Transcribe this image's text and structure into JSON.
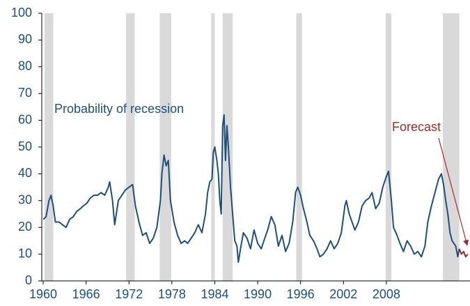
{
  "chart_data": {
    "type": "line",
    "xlim": [
      1959.8,
      2019.7
    ],
    "xticks": [
      1960,
      1966,
      1972,
      1978,
      1984,
      1990,
      1996,
      2002,
      2008
    ],
    "ylim": [
      0,
      100
    ],
    "yticks": [
      0,
      10,
      20,
      30,
      40,
      50,
      60,
      70,
      80,
      90,
      100
    ],
    "recession_color": "#d9d9d9",
    "recessions": [
      [
        1960.2,
        1961.4
      ],
      [
        1971.6,
        1972.8
      ],
      [
        1976.3,
        1977.9
      ],
      [
        1983.5,
        1984.0
      ],
      [
        1985.1,
        1986.5
      ],
      [
        1995.4,
        1996.2
      ],
      [
        2007.9,
        2008.7
      ],
      [
        2015.9,
        2018.2
      ]
    ],
    "series": [
      {
        "name": "Probability of recession",
        "color": "#1b4f7c",
        "x": [
          1960.0,
          1960.4,
          1960.8,
          1961.1,
          1961.4,
          1961.7,
          1962.2,
          1962.7,
          1963.2,
          1963.7,
          1964.2,
          1964.7,
          1965.2,
          1965.6,
          1966.1,
          1966.6,
          1967.1,
          1967.6,
          1968.1,
          1968.6,
          1969.1,
          1969.3,
          1969.7,
          1970.0,
          1970.5,
          1971.0,
          1971.5,
          1972.0,
          1972.5,
          1972.9,
          1973.4,
          1973.9,
          1974.4,
          1974.9,
          1975.4,
          1975.9,
          1976.4,
          1976.6,
          1976.9,
          1977.2,
          1977.5,
          1977.8,
          1978.3,
          1978.8,
          1979.3,
          1979.8,
          1980.2,
          1980.7,
          1981.2,
          1981.7,
          1982.2,
          1982.7,
          1983.0,
          1983.3,
          1983.6,
          1983.8,
          1984.0,
          1984.3,
          1984.5,
          1984.7,
          1984.9,
          1985.1,
          1985.3,
          1985.5,
          1985.7,
          1985.9,
          1986.2,
          1986.5,
          1986.8,
          1987.1,
          1987.3,
          1987.6,
          1988.0,
          1988.5,
          1989.0,
          1989.5,
          1990.0,
          1990.5,
          1991.0,
          1991.4,
          1991.9,
          1992.4,
          1992.9,
          1993.4,
          1993.9,
          1994.4,
          1994.9,
          1995.3,
          1995.6,
          1996.0,
          1996.4,
          1996.8,
          1997.3,
          1997.8,
          1998.3,
          1998.7,
          1999.2,
          1999.7,
          2000.2,
          2000.7,
          2001.2,
          2001.7,
          2002.2,
          2002.4,
          2002.8,
          2003.2,
          2003.6,
          2004.1,
          2004.6,
          2005.1,
          2005.6,
          2006.0,
          2006.5,
          2007.0,
          2007.5,
          2008.0,
          2008.3,
          2008.7,
          2009.0,
          2009.5,
          2009.9,
          2010.4,
          2010.9,
          2011.4,
          2011.9,
          2012.4,
          2012.9,
          2013.4,
          2013.8,
          2014.3,
          2014.8,
          2015.3,
          2015.7,
          2016.0,
          2016.3,
          2016.6,
          2016.9,
          2017.2,
          2017.7,
          2018.0,
          2018.2
        ],
        "values": [
          23,
          24,
          30,
          32,
          28,
          22,
          22,
          21,
          20,
          23,
          24,
          26,
          27,
          28,
          29,
          31,
          32,
          32,
          33,
          32,
          35,
          37,
          30,
          21,
          30,
          32,
          34,
          35,
          36,
          28,
          22,
          17,
          18,
          14,
          16,
          20,
          30,
          40,
          47,
          43,
          45,
          30,
          22,
          17,
          14,
          15,
          14,
          16,
          18,
          21,
          18,
          25,
          33,
          37,
          38,
          48,
          50,
          45,
          40,
          30,
          25,
          58,
          62,
          45,
          58,
          50,
          35,
          25,
          15,
          13,
          7,
          12,
          18,
          16,
          12,
          19,
          14,
          12,
          16,
          19,
          24,
          21,
          13,
          17,
          11,
          14,
          22,
          33,
          35,
          32,
          27,
          23,
          17,
          15,
          12,
          9,
          10,
          12,
          15,
          12,
          14,
          18,
          28,
          30,
          25,
          22,
          19,
          22,
          28,
          30,
          31,
          33,
          27,
          29,
          35,
          39,
          41,
          30,
          20,
          17,
          14,
          11,
          15,
          13,
          10,
          11,
          9,
          13,
          22,
          28,
          33,
          38,
          40,
          36,
          30,
          25,
          18,
          15,
          13,
          9,
          12
        ]
      },
      {
        "name": "Forecast",
        "color": "#a3282b",
        "x": [
          2018.2,
          2018.5,
          2018.8,
          2019.1,
          2019.4
        ],
        "values": [
          12,
          10,
          11,
          9,
          10
        ]
      }
    ]
  }
}
